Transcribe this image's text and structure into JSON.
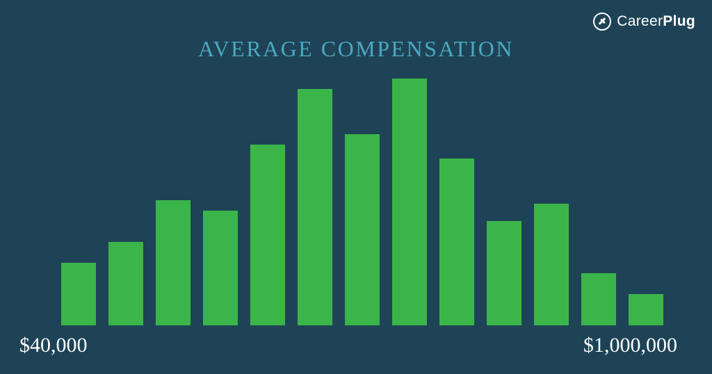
{
  "logo": {
    "brand_part1": "Career",
    "brand_part2": "Plug"
  },
  "chart": {
    "type": "bar",
    "title": "AVERAGE COMPENSATION",
    "title_color": "#4ba8c0",
    "title_fontsize": 32,
    "background_color": "#1e4356",
    "bar_color": "#3bb54a",
    "bar_gap": 18,
    "values": [
      90,
      120,
      180,
      165,
      260,
      340,
      275,
      355,
      240,
      150,
      175,
      75,
      45
    ],
    "ylim": [
      0,
      370
    ],
    "x_label_left": "$40,000",
    "x_label_right": "$1,000,000",
    "x_label_color": "#ffffff",
    "x_label_fontsize": 30
  }
}
